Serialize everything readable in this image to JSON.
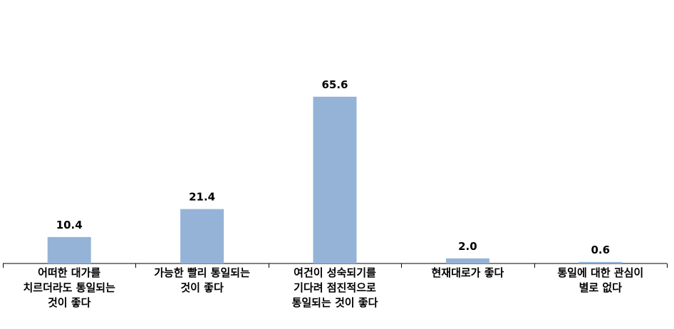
{
  "chart_data": {
    "type": "bar",
    "categories": [
      "어떠한 대가를\n치르더라도 통일되는\n것이 좋다",
      "가능한 빨리 통일되는\n것이 좋다",
      "여건이 성숙되기를\n기다려 점진적으로\n통일되는 것이 좋다",
      "현재대로가 좋다",
      "통일에 대한 관심이\n별로 없다"
    ],
    "values": [
      10.4,
      21.4,
      65.6,
      2.0,
      0.6
    ],
    "value_labels": [
      "10.4",
      "21.4",
      "65.6",
      "2.0",
      "0.6"
    ],
    "ylim": [
      0,
      80
    ],
    "grid": false,
    "bar_color": "#95B3D7",
    "axis_color": "#000000"
  }
}
